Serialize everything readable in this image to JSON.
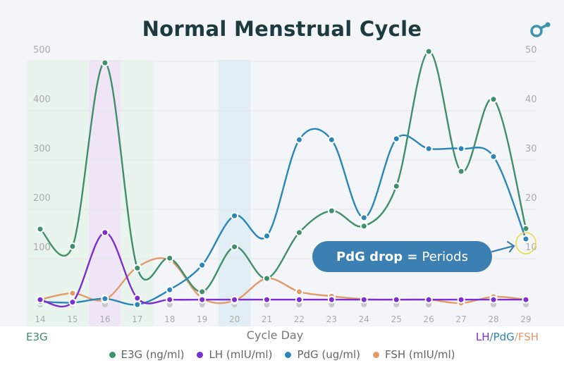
{
  "chart_data": {
    "type": "line",
    "title": "Normal Menstrual Cycle",
    "xlabel": "Cycle Day",
    "ylabel_left": "E3G",
    "ylabel_right": [
      "LH",
      "/",
      "PdG",
      "/",
      "FSH"
    ],
    "x": [
      14,
      15,
      16,
      17,
      18,
      19,
      20,
      21,
      22,
      23,
      24,
      25,
      26,
      27,
      28,
      29
    ],
    "ylim_left": [
      0,
      500
    ],
    "ylim_right": [
      0,
      50
    ],
    "yticks_left": [
      "100",
      "200",
      "300",
      "400",
      "500"
    ],
    "yticks_right": [
      "10",
      "20",
      "30",
      "40",
      "50"
    ],
    "grid": true,
    "smooth": true,
    "highlight_bands": [
      {
        "from": 13.6,
        "to": 15.5,
        "color": "#e6f4e8"
      },
      {
        "from": 15.5,
        "to": 16.5,
        "color": "#efe1f6"
      },
      {
        "from": 16.5,
        "to": 17.5,
        "color": "#e6f4e8"
      },
      {
        "from": 19.5,
        "to": 20.5,
        "color": "#dcecf5"
      }
    ],
    "series": [
      {
        "name": "E3G (ng/ml)",
        "axis": "left",
        "color": "#3f8f6a",
        "values": [
          160,
          125,
          497,
          81,
          101,
          33,
          124,
          60,
          153,
          197,
          166,
          247,
          520,
          277,
          423,
          161
        ]
      },
      {
        "name": "LH (mIU/ml)",
        "axis": "right",
        "color": "#7b2fd0",
        "values": [
          1.7,
          1.2,
          15.3,
          2.0,
          1.7,
          1.7,
          1.7,
          1.7,
          1.7,
          1.7,
          1.7,
          1.7,
          1.7,
          1.7,
          1.7,
          1.7
        ]
      },
      {
        "name": "PdG (ug/ml)",
        "axis": "right",
        "color": "#2a86b8",
        "values": [
          1.3,
          1.1,
          1.9,
          0.7,
          3.7,
          8.7,
          18.7,
          14.6,
          34.1,
          34.1,
          18.3,
          34.3,
          32.3,
          32.3,
          30.7,
          14.0
        ]
      },
      {
        "name": "FSH (mIU/ml)",
        "axis": "right",
        "color": "#e39a6b",
        "values": [
          1.7,
          3.0,
          1.7,
          8.3,
          9.7,
          2.0,
          1.5,
          6.0,
          3.3,
          2.4,
          1.8,
          1.7,
          1.7,
          1.0,
          2.3,
          1.7
        ]
      }
    ],
    "legend": "bottom",
    "annotation": {
      "bold": "PdG drop =",
      "text": "Periods",
      "target_day": 29,
      "target_series": "PdG (ug/ml)"
    }
  },
  "colors": {
    "title": "#1d3b3e",
    "accent": "#3c7fb2",
    "highlight_ring": "#e6dc3c"
  },
  "logo_icon": "ovulation-logo-icon"
}
